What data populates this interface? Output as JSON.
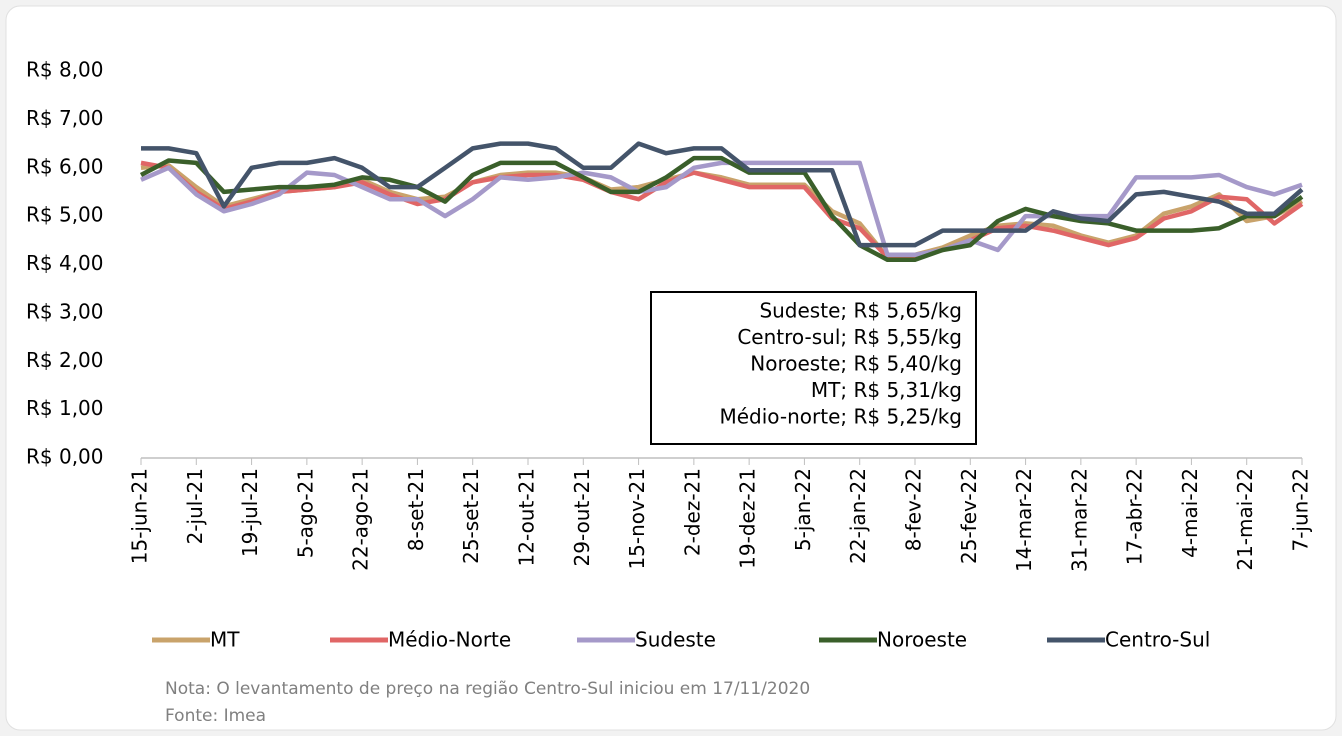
{
  "chart_data": {
    "type": "line",
    "categories": [
      "15-jun-21",
      null,
      "2-jul-21",
      null,
      "19-jul-21",
      null,
      "5-ago-21",
      null,
      "22-ago-21",
      null,
      "8-set-21",
      null,
      "25-set-21",
      null,
      "12-out-21",
      null,
      "29-out-21",
      null,
      "15-nov-21",
      null,
      "2-dez-21",
      null,
      "19-dez-21",
      null,
      "5-jan-22",
      null,
      "22-jan-22",
      null,
      "8-fev-22",
      null,
      "25-fev-22",
      null,
      "14-mar-22",
      null,
      "31-mar-22",
      null,
      "17-abr-22",
      null,
      "4-mai-22",
      null,
      "21-mai-22",
      null,
      "7-jun-22"
    ],
    "series": [
      {
        "name": "MT",
        "color": "#c9a36b",
        "values": [
          6.0,
          6.05,
          5.6,
          5.2,
          5.35,
          5.5,
          5.55,
          5.6,
          5.75,
          5.5,
          5.35,
          5.4,
          5.7,
          5.85,
          5.9,
          5.9,
          5.8,
          5.55,
          5.6,
          5.75,
          5.9,
          5.8,
          5.65,
          5.65,
          5.65,
          5.1,
          4.85,
          4.15,
          4.2,
          4.35,
          4.6,
          4.8,
          4.85,
          4.8,
          4.6,
          4.45,
          4.6,
          5.05,
          5.2,
          5.45,
          4.9,
          5.0,
          5.31
        ]
      },
      {
        "name": "Médio-Norte",
        "color": "#e06666",
        "values": [
          6.1,
          6.0,
          5.5,
          5.15,
          5.3,
          5.5,
          5.55,
          5.6,
          5.7,
          5.45,
          5.25,
          5.35,
          5.7,
          5.8,
          5.85,
          5.85,
          5.75,
          5.5,
          5.35,
          5.7,
          5.9,
          5.75,
          5.6,
          5.6,
          5.6,
          4.95,
          4.75,
          4.15,
          4.15,
          4.3,
          4.5,
          4.75,
          4.8,
          4.7,
          4.55,
          4.4,
          4.55,
          4.95,
          5.1,
          5.4,
          5.35,
          4.85,
          5.25
        ]
      },
      {
        "name": "Sudeste",
        "color": "#a599c9",
        "values": [
          5.75,
          6.0,
          5.45,
          5.1,
          5.25,
          5.45,
          5.9,
          5.85,
          5.6,
          5.35,
          5.35,
          5.0,
          5.35,
          5.8,
          5.75,
          5.8,
          5.9,
          5.8,
          5.5,
          5.6,
          6.0,
          6.1,
          6.1,
          6.1,
          6.1,
          6.1,
          6.1,
          4.2,
          4.2,
          4.3,
          4.5,
          4.3,
          5.0,
          5.0,
          5.0,
          5.0,
          5.8,
          5.8,
          5.8,
          5.85,
          5.6,
          5.45,
          5.65
        ]
      },
      {
        "name": "Noroeste",
        "color": "#3a5f2a",
        "values": [
          5.85,
          6.15,
          6.1,
          5.5,
          5.55,
          5.6,
          5.6,
          5.65,
          5.8,
          5.75,
          5.6,
          5.3,
          5.85,
          6.1,
          6.1,
          6.1,
          5.8,
          5.5,
          5.5,
          5.8,
          6.2,
          6.2,
          5.9,
          5.9,
          5.9,
          5.0,
          4.4,
          4.1,
          4.1,
          4.3,
          4.4,
          4.9,
          5.15,
          5.0,
          4.9,
          4.85,
          4.7,
          4.7,
          4.7,
          4.75,
          5.0,
          5.0,
          5.4
        ]
      },
      {
        "name": "Centro-Sul",
        "color": "#44546a",
        "values": [
          6.4,
          6.4,
          6.3,
          5.2,
          6.0,
          6.1,
          6.1,
          6.2,
          6.0,
          5.6,
          5.6,
          6.0,
          6.4,
          6.5,
          6.5,
          6.4,
          6.0,
          6.0,
          6.5,
          6.3,
          6.4,
          6.4,
          5.95,
          5.95,
          5.95,
          5.95,
          4.4,
          4.4,
          4.4,
          4.7,
          4.7,
          4.7,
          4.7,
          5.1,
          4.95,
          4.9,
          5.45,
          5.5,
          5.4,
          5.3,
          5.05,
          5.05,
          5.55
        ]
      }
    ],
    "ylim": [
      0,
      8
    ],
    "yticks": [
      {
        "value": 0,
        "label": "R$ 0,00"
      },
      {
        "value": 1,
        "label": "R$ 1,00"
      },
      {
        "value": 2,
        "label": "R$ 2,00"
      },
      {
        "value": 3,
        "label": "R$ 3,00"
      },
      {
        "value": 4,
        "label": "R$ 4,00"
      },
      {
        "value": 5,
        "label": "R$ 5,00"
      },
      {
        "value": 6,
        "label": "R$ 6,00"
      },
      {
        "value": 7,
        "label": "R$ 7,00"
      },
      {
        "value": 8,
        "label": "R$ 8,00"
      }
    ],
    "grid": false,
    "legend": "bottom",
    "annotations": [
      "Sudeste; R$ 5,65/kg",
      "Centro-sul; R$ 5,55/kg",
      "Noroeste; R$ 5,40/kg",
      "MT; R$ 5,31/kg",
      "Médio-norte; R$ 5,25/kg"
    ],
    "notes": [
      "Nota: O levantamento de preço na região Centro-Sul iniciou em 17/11/2020",
      "Fonte: Imea"
    ]
  }
}
